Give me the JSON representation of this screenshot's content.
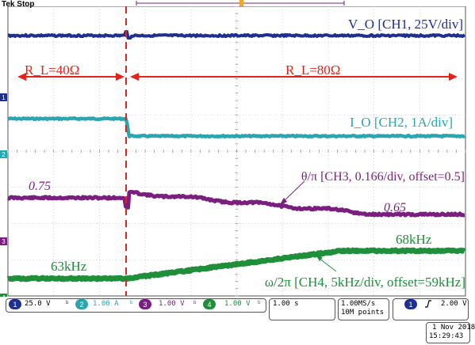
{
  "header": {
    "status": "Tek Stop"
  },
  "colors": {
    "ch1": "#1f2f8f",
    "ch2": "#2aa6b0",
    "ch3": "#7a1f7f",
    "ch4": "#1f8f3a",
    "cursor": "#e2231a",
    "trigger": "#f5a623",
    "grid": "#bdbdbd"
  },
  "annotations": {
    "vo": "V_O [CH1, 25V/div]",
    "rl40": "R_L=40Ω",
    "rl80": "R_L=80Ω",
    "io": "I_O [CH2, 1A/div]",
    "theta": "θ/π [CH3, 0.166/div, offset=0.5]",
    "v075": "0.75",
    "v065": "0.65",
    "f68": "68kHz",
    "f63": "63kHz",
    "omega": "ω/2π [CH4, 5kHz/div, offset=59kHz]"
  },
  "channel_markers": [
    "1",
    "2",
    "3",
    "4"
  ],
  "status": {
    "ch1": {
      "num": "1",
      "scale": "25.0 V"
    },
    "ch2": {
      "num": "2",
      "scale": "1.00 A"
    },
    "ch3": {
      "num": "3",
      "scale": "1.00 V"
    },
    "ch4": {
      "num": "4",
      "scale": "1.00 V"
    },
    "timebase": "1.00 s",
    "sample_rate": "1.00MS/s",
    "record_length": "10M points",
    "trigger_channel": "1",
    "trigger_slope": "rising-edge-icon",
    "trigger_level": "2.00 V",
    "date": "1 Nov 2018",
    "time": "15:29:43"
  }
}
